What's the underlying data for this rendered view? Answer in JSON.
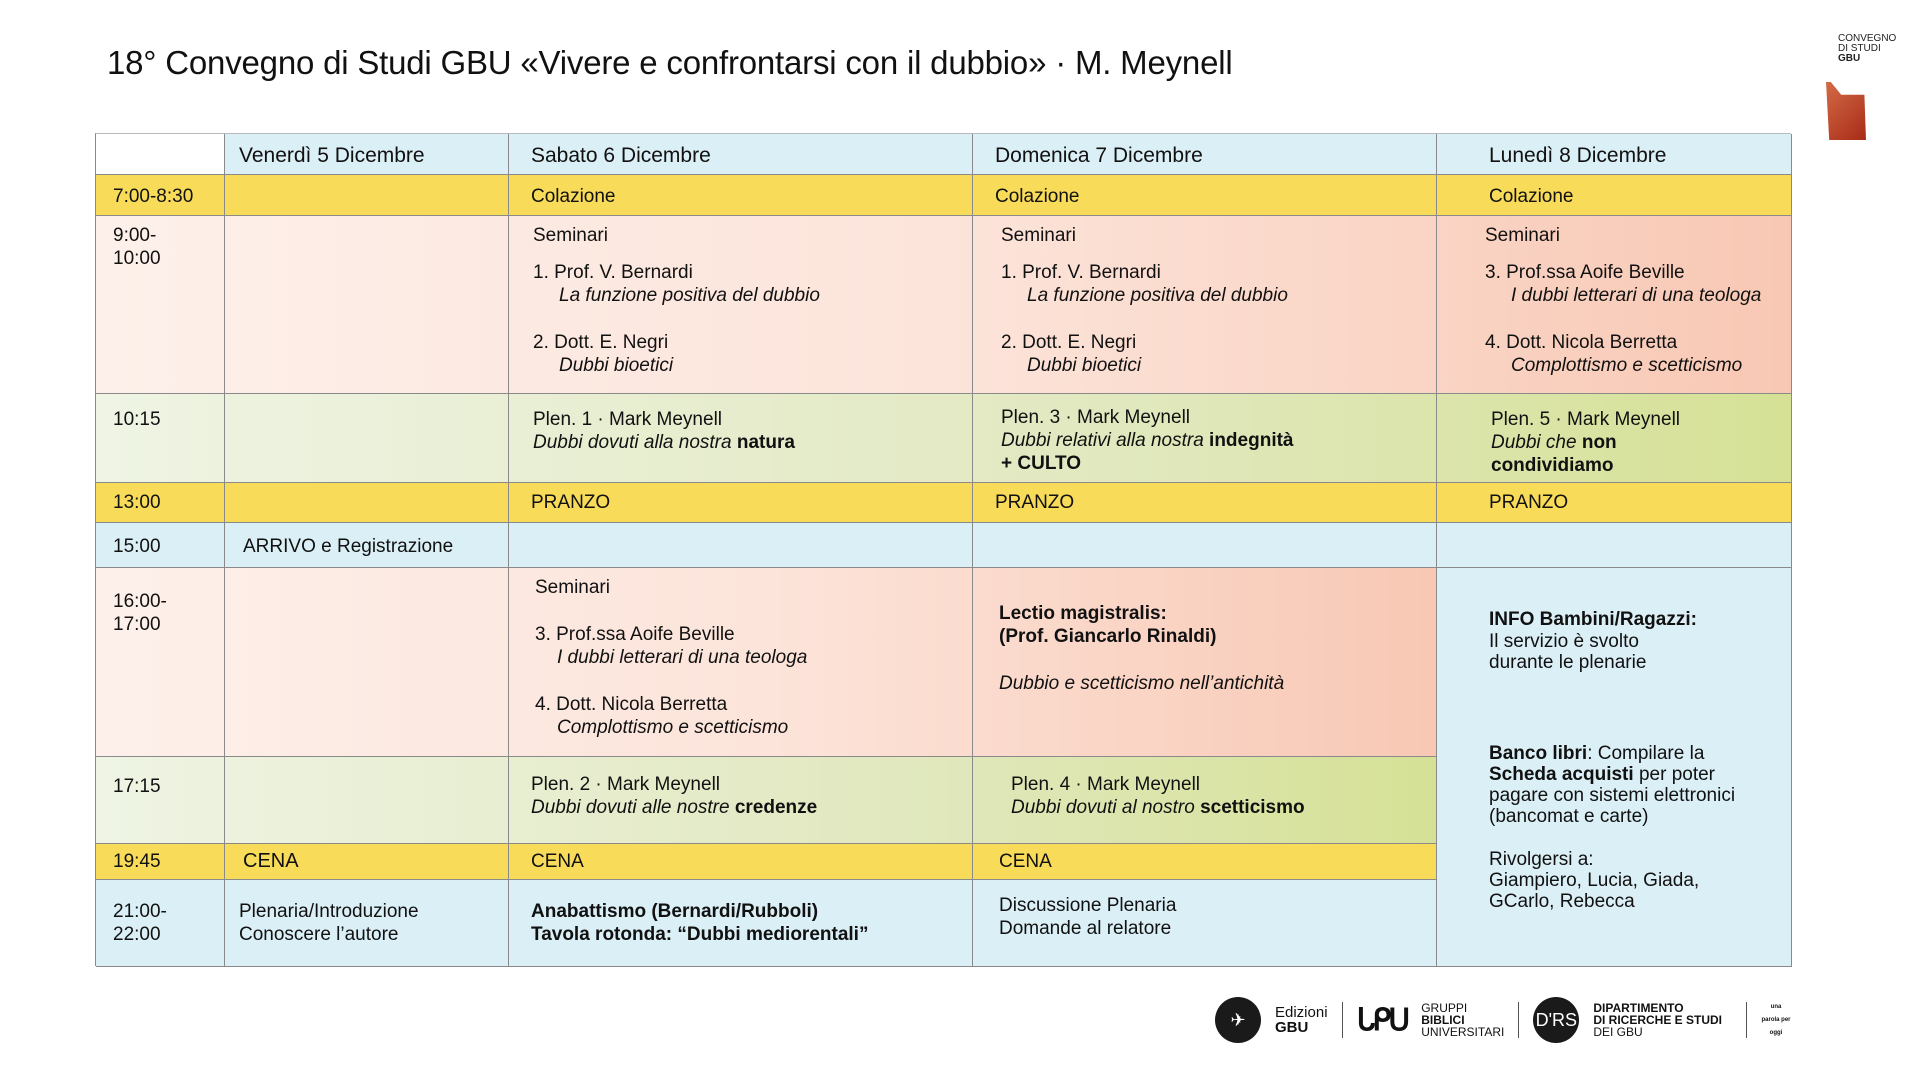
{
  "title": "18° Convegno di Studi GBU «Vivere e confrontarsi con il dubbio» · M. Meynell",
  "logo": {
    "line1": "CONVEGNO",
    "line2": "DI STUDI",
    "line3": "GBU"
  },
  "colors": {
    "meal": "#f8db58",
    "blue": "#dbeff6",
    "seminar": "#f8c8b4",
    "plenary": "#d8e396"
  },
  "days": [
    "Venerdì 5 Dicembre",
    "Sabato 6 Dicembre",
    "Domenica 7 Dicembre",
    "Lunedì 8 Dicembre"
  ],
  "times": [
    "7:00-8:30",
    "9:00-\n10:00",
    "10:15",
    "13:00",
    "15:00",
    "16:00-\n17:00",
    "17:15",
    "19:45",
    "21:00-\n22:00"
  ],
  "colazione": "Colazione",
  "pranzo": "PRANZO",
  "cena": "CENA",
  "seminari": "Seminari",
  "sem": {
    "s1": "1. Prof. V. Bernardi",
    "t1": "La funzione positiva del dubbio",
    "s2": "2.  Dott. E. Negri",
    "t2": "Dubbi bioetici",
    "s3": "3. Prof.ssa Aoife Beville",
    "t3": "I dubbi letterari di una teologa",
    "s4": "4. Dott. Nicola Berretta",
    "t4": "Complottismo e scetticismo"
  },
  "plen": {
    "p1": "Plen. 1 · Mark Meynell",
    "p1a": "Dubbi dovuti alla nostra ",
    "p1b": "natura",
    "p3": "Plen. 3 · Mark Meynell",
    "p3a": "Dubbi relativi alla nostra ",
    "p3b": "indegnità",
    "p3c": "+ CULTO",
    "p5": "Plen. 5 · Mark Meynell",
    "p5a": "Dubbi che ",
    "p5b": "non condividiamo",
    "p2": "Plen. 2 · Mark Meynell",
    "p2a": "Dubbi dovuti alle nostre ",
    "p2b": "credenze",
    "p4": "Plen. 4 · Mark Meynell",
    "p4a": "Dubbi dovuti al nostro ",
    "p4b": "scetticismo"
  },
  "arrivo": "ARRIVO e Registrazione",
  "lectio": {
    "l1": "Lectio magistralis:",
    "l2": "(Prof. Giancarlo Rinaldi)",
    "l3": "Dubbio e scetticismo nell’antichità"
  },
  "info": {
    "h": "INFO Bambini/Ragazzi:",
    "t": "Il servizio è svolto\ndurante le plenarie",
    "b1": "Banco libri",
    "b2": ": Compilare la ",
    "b3": "Scheda acquisti",
    "b4": " per poter pagare con sistemi elettronici (bancomat e carte)",
    "r": "Rivolgersi a:\nGiampiero, Lucia, Giada,\nGCarlo, Rebecca"
  },
  "evening": {
    "fri1": "Plenaria/Introduzione",
    "fri2": "Conoscere l’autore",
    "sat1": "Anabattismo (Bernardi/Rubboli)",
    "sat2": "Tavola rotonda: “Dubbi mediorentali”",
    "sun1": "Discussione Plenaria",
    "sun2": "Domande al relatore"
  },
  "footer": {
    "ed1": "Edizioni",
    "ed2": "GBU",
    "g1": "GRUPPI",
    "g2": "BIBLICI",
    "g3": "UNIVERSITARI",
    "drs": "D'RS",
    "d1": "DIPARTIMENTO",
    "d2": "DI RICERCHE E STUDI",
    "d3": "DEI GBU",
    "upo": "una parola per oggi"
  }
}
